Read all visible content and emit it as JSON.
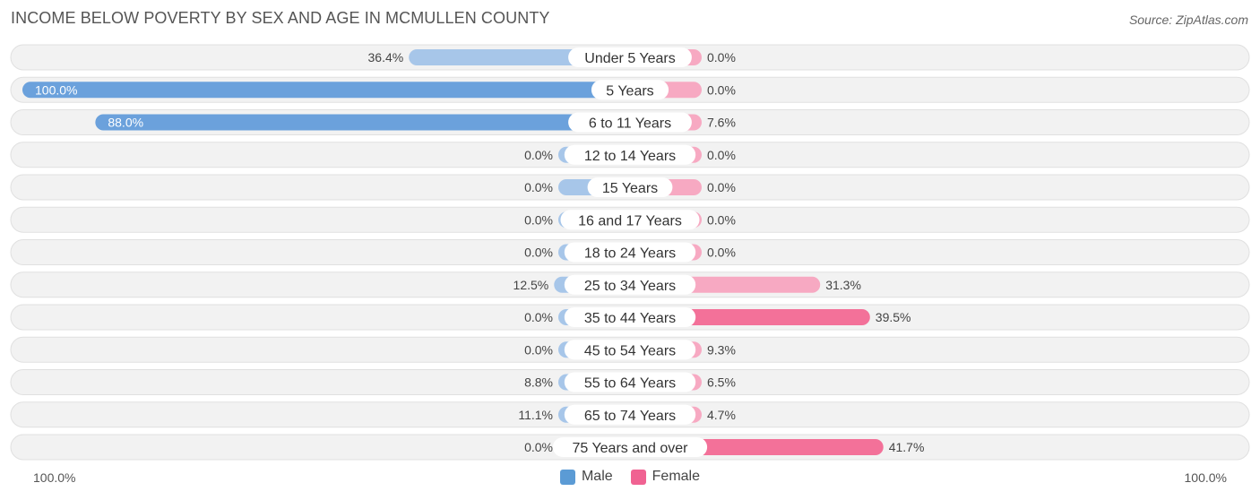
{
  "header": {
    "title": "INCOME BELOW POVERTY BY SEX AND AGE IN MCMULLEN COUNTY",
    "source": "Source: ZipAtlas.com"
  },
  "axis": {
    "left_label": "100.0%",
    "right_label": "100.0%"
  },
  "legend": {
    "male": {
      "label": "Male",
      "color": "#5b9bd5"
    },
    "female": {
      "label": "Female",
      "color": "#f06292"
    }
  },
  "colors": {
    "male_bar": "#a7c6e9",
    "male_bar_dark": "#6ba1dc",
    "female_bar": "#f7a9c2",
    "female_bar_dark": "#f37199",
    "row_bg": "#f2f2f2",
    "row_border": "#e0e0e0"
  },
  "chart_data": {
    "type": "bar",
    "orientation": "horizontal-diverging",
    "title": "INCOME BELOW POVERTY BY SEX AND AGE IN MCMULLEN COUNTY",
    "xlim": [
      -100,
      100
    ],
    "categories": [
      "Under 5 Years",
      "5 Years",
      "6 to 11 Years",
      "12 to 14 Years",
      "15 Years",
      "16 and 17 Years",
      "18 to 24 Years",
      "25 to 34 Years",
      "35 to 44 Years",
      "45 to 54 Years",
      "55 to 64 Years",
      "65 to 74 Years",
      "75 Years and over"
    ],
    "series": [
      {
        "name": "Male",
        "values": [
          36.4,
          100.0,
          88.0,
          0.0,
          0.0,
          0.0,
          0.0,
          12.5,
          0.0,
          0.0,
          8.8,
          11.1,
          0.0
        ],
        "labels": [
          "36.4%",
          "100.0%",
          "88.0%",
          "0.0%",
          "0.0%",
          "0.0%",
          "0.0%",
          "12.5%",
          "0.0%",
          "0.0%",
          "8.8%",
          "11.1%",
          "0.0%"
        ]
      },
      {
        "name": "Female",
        "values": [
          0.0,
          0.0,
          7.6,
          0.0,
          0.0,
          0.0,
          0.0,
          31.3,
          39.5,
          9.3,
          6.5,
          4.7,
          41.7
        ],
        "labels": [
          "0.0%",
          "0.0%",
          "7.6%",
          "0.0%",
          "0.0%",
          "0.0%",
          "0.0%",
          "31.3%",
          "39.5%",
          "9.3%",
          "6.5%",
          "4.7%",
          "41.7%"
        ]
      }
    ],
    "legend_position": "bottom-center"
  }
}
